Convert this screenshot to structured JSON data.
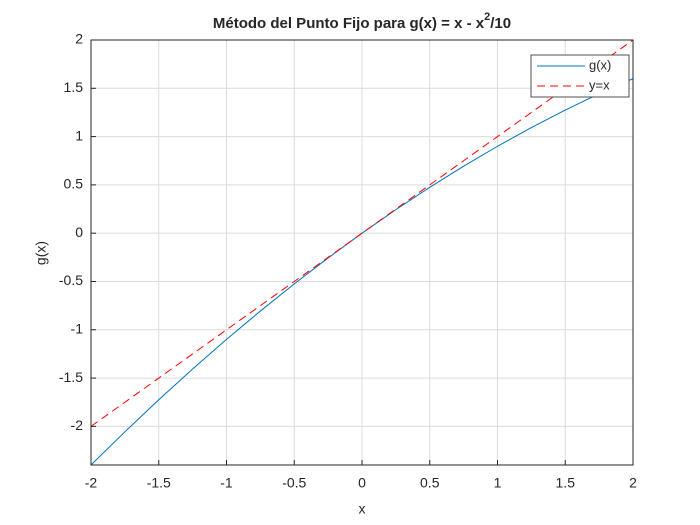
{
  "chart_data": {
    "type": "line",
    "title_parts": [
      "Método del Punto Fijo para g(x) = x - x",
      "2",
      "/10"
    ],
    "x_label": "x",
    "y_label": "g(x)",
    "x": [
      -2,
      -1.75,
      -1.5,
      -1.25,
      -1,
      -0.75,
      -0.5,
      -0.25,
      0,
      0.25,
      0.5,
      0.75,
      1,
      1.25,
      1.5,
      1.75,
      2
    ],
    "series": [
      {
        "name": "g(x)",
        "color": "#0072bd",
        "dash": "solid",
        "values": [
          -2.4,
          -2.05625,
          -1.725,
          -1.40625,
          -1.1,
          -0.80625,
          -0.525,
          -0.25625,
          0,
          0.24375,
          0.475,
          0.69375,
          0.9,
          1.09375,
          1.275,
          1.44375,
          1.6
        ]
      },
      {
        "name": "y=x",
        "color": "#ff0000",
        "dash": "dashed",
        "values": [
          -2,
          -1.75,
          -1.5,
          -1.25,
          -1,
          -0.75,
          -0.5,
          -0.25,
          0,
          0.25,
          0.5,
          0.75,
          1,
          1.25,
          1.5,
          1.75,
          2
        ]
      }
    ],
    "xlim": [
      -2,
      2
    ],
    "ylim": [
      -2.4,
      2
    ],
    "xticks": [
      -2,
      -1.5,
      -1,
      -0.5,
      0,
      0.5,
      1,
      1.5,
      2
    ],
    "yticks": [
      -2,
      -1.5,
      -1,
      -0.5,
      0,
      0.5,
      1,
      1.5,
      2
    ],
    "grid": true,
    "legend": "northeast"
  }
}
